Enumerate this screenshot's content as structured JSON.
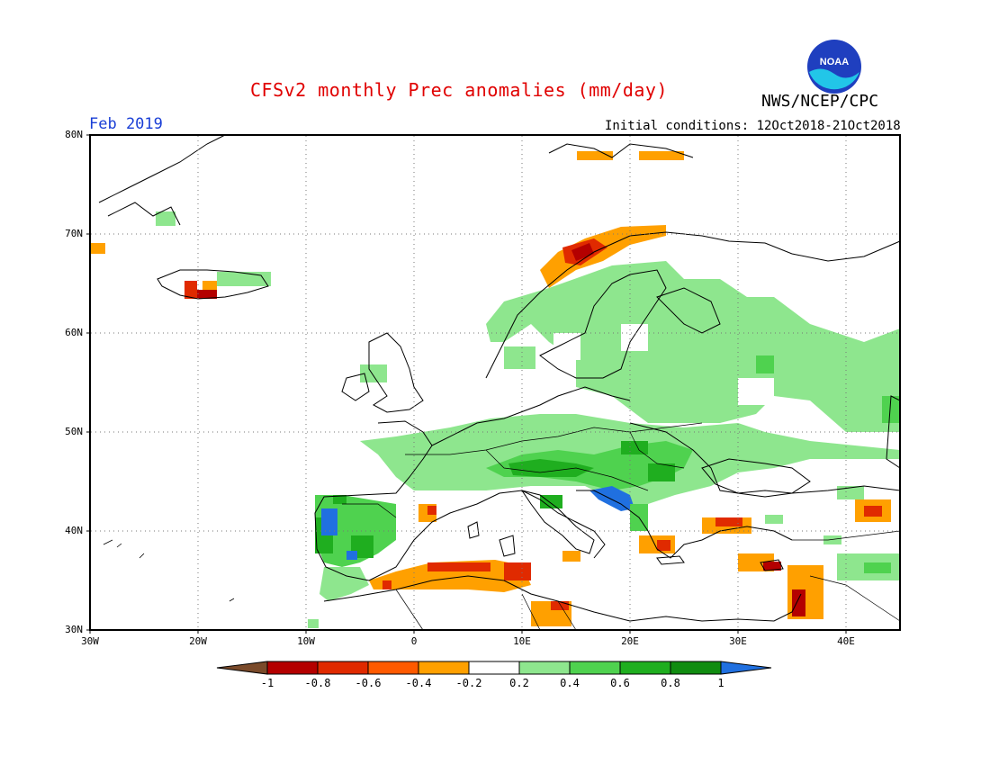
{
  "header": {
    "title": "CFSv2 monthly Prec anomalies (mm/day)",
    "org": "NWS/NCEP/CPC",
    "period": "Feb 2019",
    "initial_conditions": "Initial conditions: 12Oct2018-21Oct2018"
  },
  "logo": {
    "icon": "noaa-logo-icon",
    "text": "NOAA"
  },
  "map": {
    "lat_labels": [
      "80N",
      "70N",
      "60N",
      "50N",
      "40N",
      "30N"
    ],
    "lon_labels": [
      "30W",
      "20W",
      "10W",
      "0",
      "10E",
      "20E",
      "30E",
      "40E"
    ],
    "grid": "dotted",
    "region": "Europe"
  },
  "colorbar": {
    "labels": [
      "-1",
      "-0.8",
      "-0.6",
      "-0.4",
      "-0.2",
      "0.2",
      "0.4",
      "0.6",
      "0.8",
      "1"
    ],
    "colors": [
      "#7a4a2a",
      "#b40000",
      "#e02a00",
      "#ff5a00",
      "#ffa000",
      "#ffffff",
      "#8ee68e",
      "#4fd24f",
      "#1fae1f",
      "#108c10",
      "#2070e0"
    ]
  }
}
